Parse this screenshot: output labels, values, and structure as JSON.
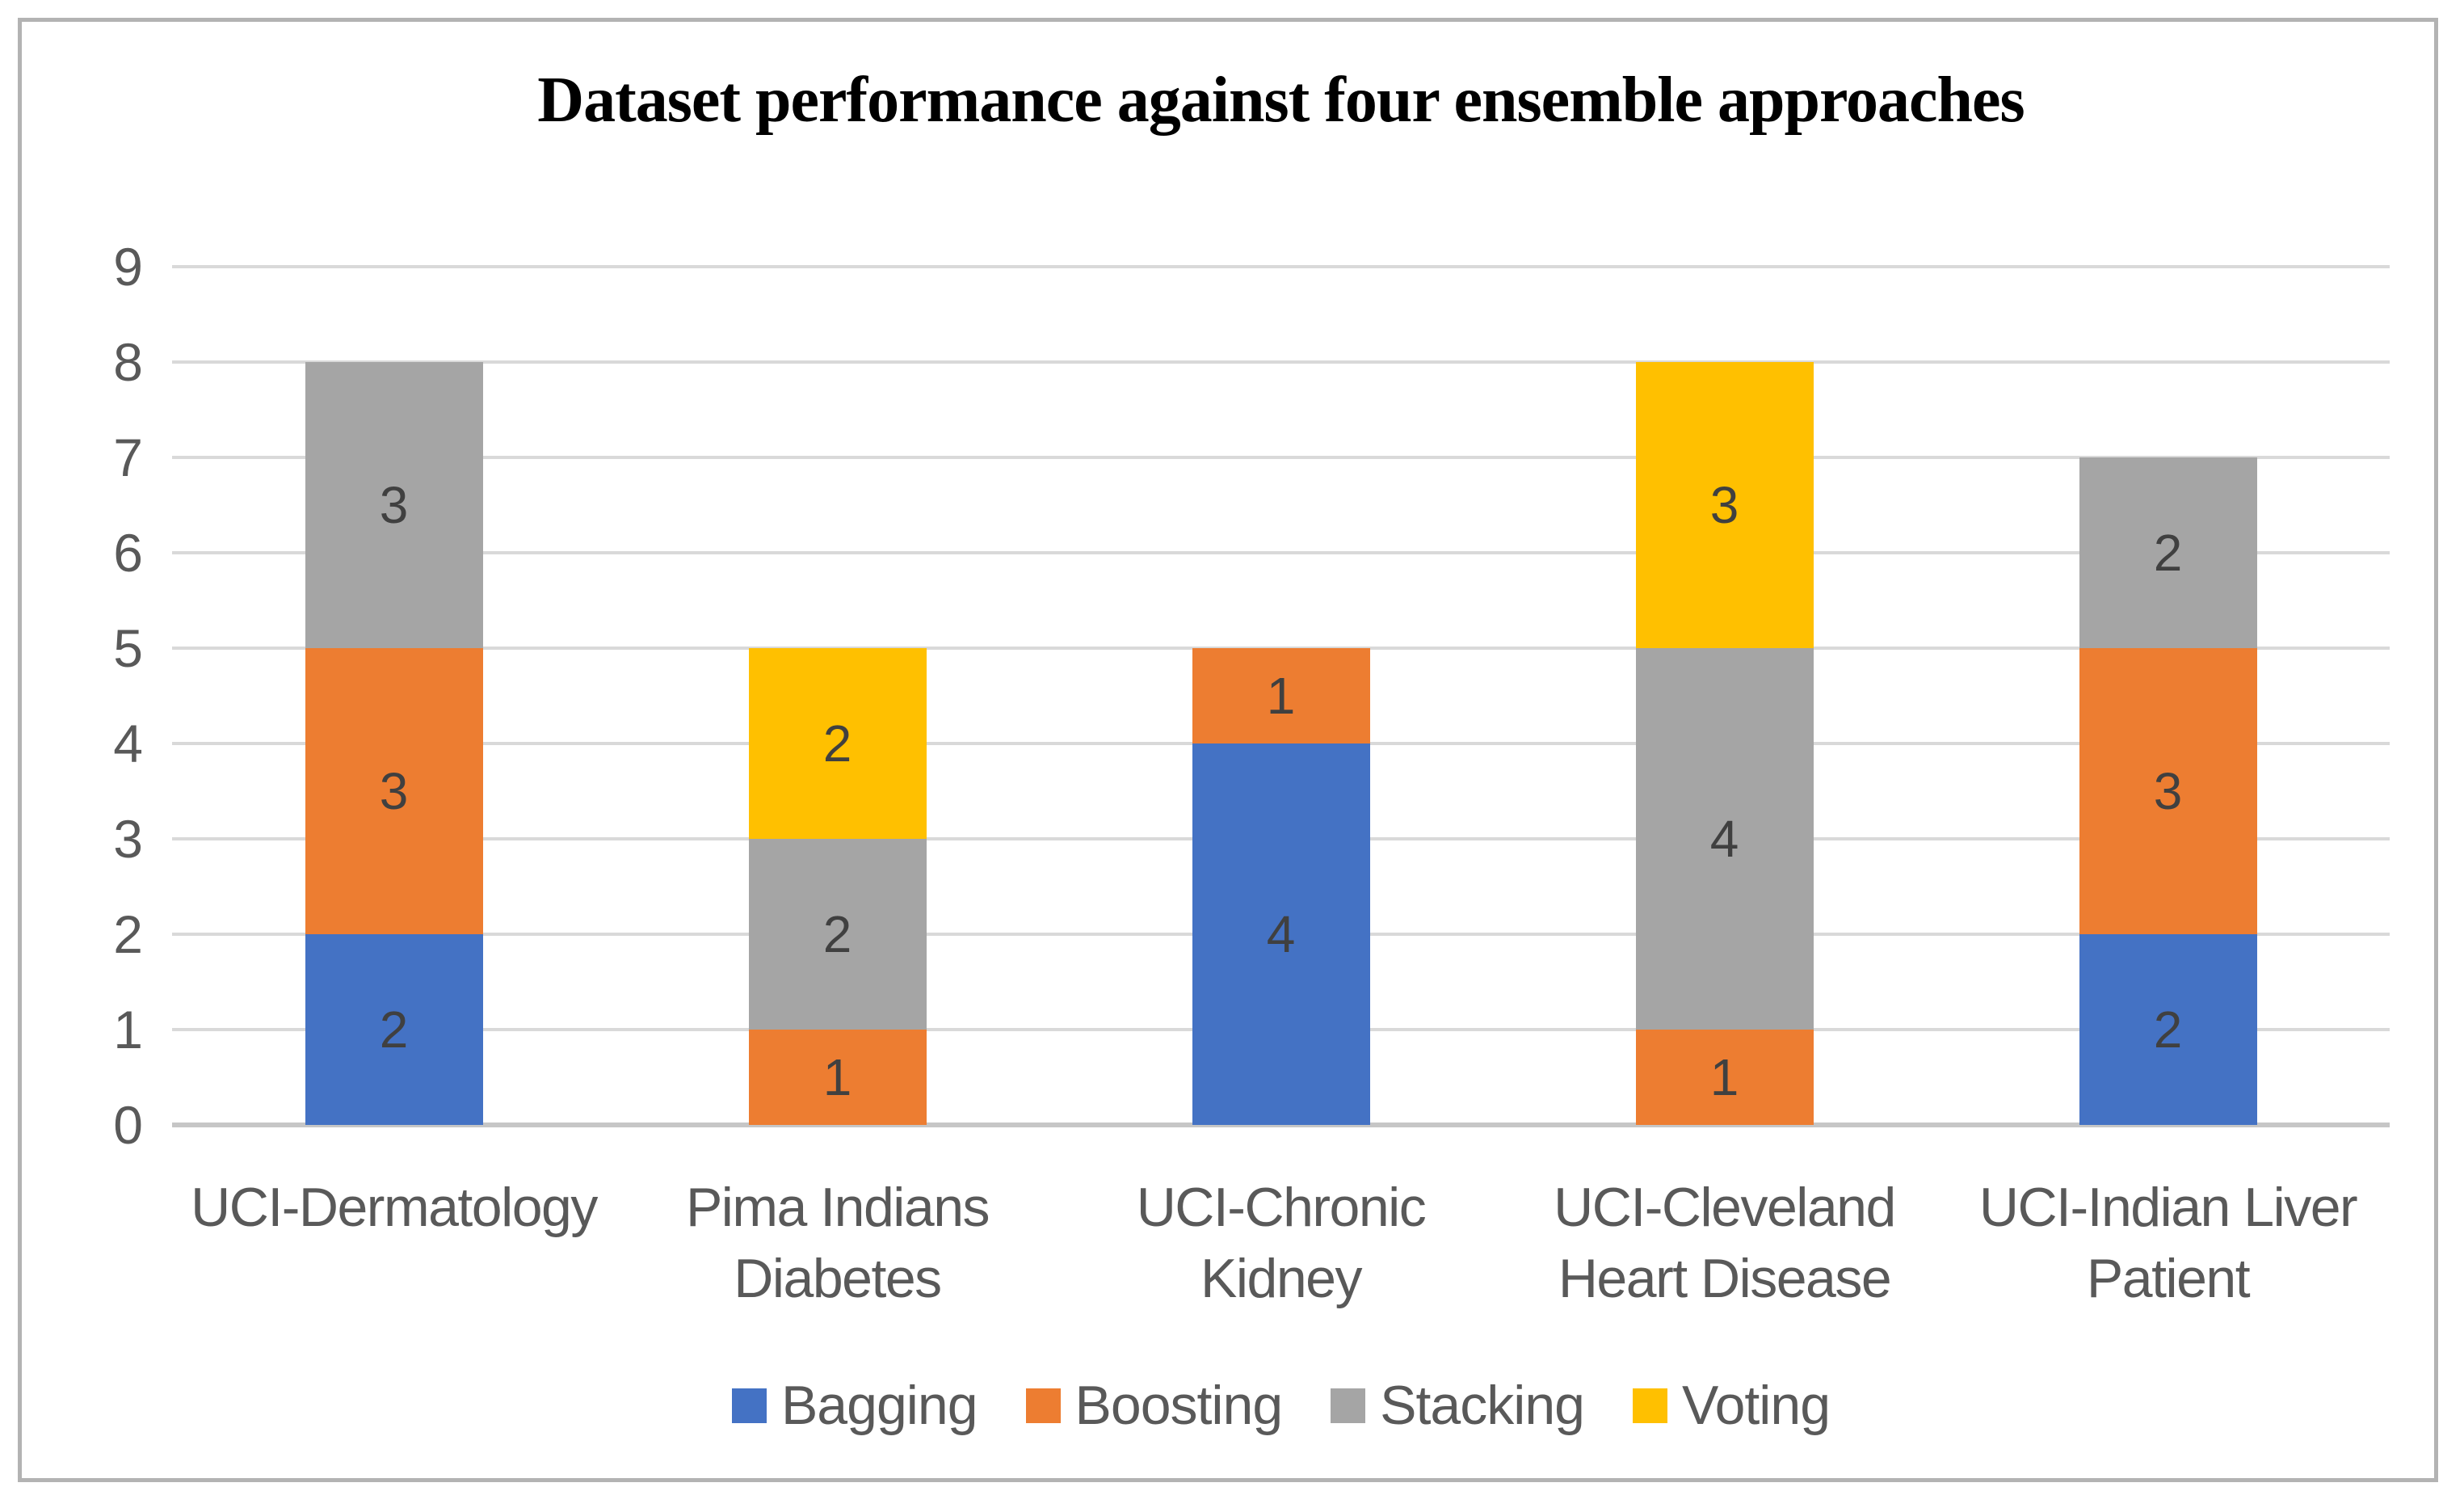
{
  "title": "Dataset performance against four ensemble approaches",
  "chart_data": {
    "type": "bar",
    "stacked": true,
    "title": "Dataset performance against four ensemble approaches",
    "categories": [
      "UCI-Dermatology",
      "Pima Indians Diabetes",
      "UCI-Chronic Kidney",
      "UCI-Cleveland Heart Disease",
      "UCI-Indian Liver Patient"
    ],
    "series": [
      {
        "name": "Bagging",
        "color": "#4472C4",
        "values": [
          2,
          0,
          4,
          0,
          2
        ]
      },
      {
        "name": "Boosting",
        "color": "#ED7D31",
        "values": [
          3,
          1,
          1,
          1,
          3
        ]
      },
      {
        "name": "Stacking",
        "color": "#A5A5A5",
        "values": [
          3,
          2,
          0,
          4,
          2
        ]
      },
      {
        "name": "Voting",
        "color": "#FFC000",
        "values": [
          0,
          2,
          0,
          3,
          0
        ]
      }
    ],
    "xlabel": "",
    "ylabel": "",
    "ylim": [
      0,
      9
    ],
    "yticks": [
      0,
      1,
      2,
      3,
      4,
      5,
      6,
      7,
      8,
      9
    ],
    "grid": true,
    "gridline_color": "#D9D9D9",
    "axis_line_color": "#C6C6C6",
    "tick_label_color": "#595959",
    "data_label_color": "#404040",
    "frame_border_color": "#B3B3B3",
    "legend_position": "bottom",
    "data_labels": true
  }
}
